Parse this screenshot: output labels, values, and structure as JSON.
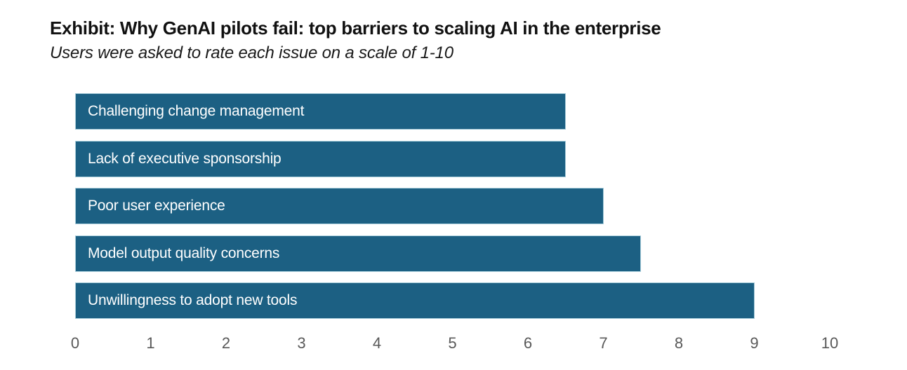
{
  "header": {
    "title": "Exhibit: Why GenAI pilots fail: top barriers to scaling AI in the enterprise",
    "subtitle": "Users were asked to rate each issue on a scale of 1-10"
  },
  "chart_data": {
    "type": "bar",
    "orientation": "horizontal",
    "title": "Exhibit: Why GenAI pilots fail: top barriers to scaling AI in the enterprise",
    "subtitle": "Users were asked to rate each issue on a scale of 1-10",
    "categories": [
      "Challenging change management",
      "Lack of executive sponsorship",
      "Poor user experience",
      "Model output quality concerns",
      "Unwillingness to adopt new tools"
    ],
    "values": [
      6.5,
      6.5,
      7,
      7.5,
      9
    ],
    "xlabel": "",
    "ylabel": "",
    "xlim": [
      0,
      10
    ],
    "x_ticks": [
      0,
      1,
      2,
      3,
      4,
      5,
      6,
      7,
      8,
      9,
      10
    ],
    "grid": false,
    "legend_position": "none",
    "bar_color": "#1c6083",
    "bar_border_color": "#a9cedb",
    "bar_label_color": "#ffffff",
    "tick_label_color": "#595959"
  }
}
